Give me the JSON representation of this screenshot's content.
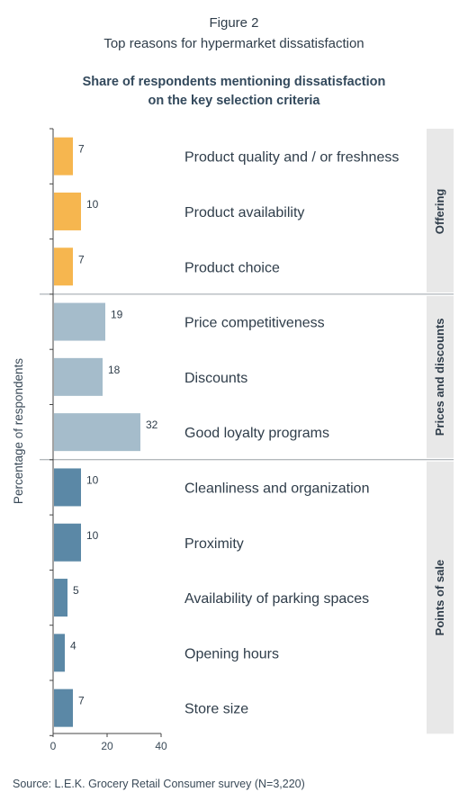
{
  "figure_number": "Figure 2",
  "figure_title": "Top reasons for hypermarket dissatisfaction",
  "source": "Source: L.E.K. Grocery Retail Consumer survey (N=3,220)",
  "chart_data": {
    "type": "bar",
    "orientation": "horizontal",
    "title_lines": [
      "Share of respondents mentioning dissatisfaction",
      "on the key selection criteria"
    ],
    "ylabel": "Percentage of respondents",
    "xlabel": "",
    "xlim": [
      0,
      40
    ],
    "xticks": [
      "0",
      "20",
      "40"
    ],
    "grid": false,
    "categories": [
      "Product quality and / or freshness",
      "Product availability",
      "Product choice",
      "Price competitiveness",
      "Discounts",
      "Good loyalty programs",
      "Cleanliness and organization",
      "Proximity",
      "Availability of parking spaces",
      "Opening hours",
      "Store size"
    ],
    "values": [
      7,
      10,
      7,
      19,
      18,
      32,
      10,
      10,
      5,
      4,
      7
    ],
    "groups": [
      {
        "name": "Offering",
        "count": 3,
        "color": "#f6b64f"
      },
      {
        "name": "Prices and discounts",
        "count": 3,
        "color": "#a5bccb"
      },
      {
        "name": "Points of sale",
        "count": 5,
        "color": "#5b88a6"
      }
    ]
  }
}
